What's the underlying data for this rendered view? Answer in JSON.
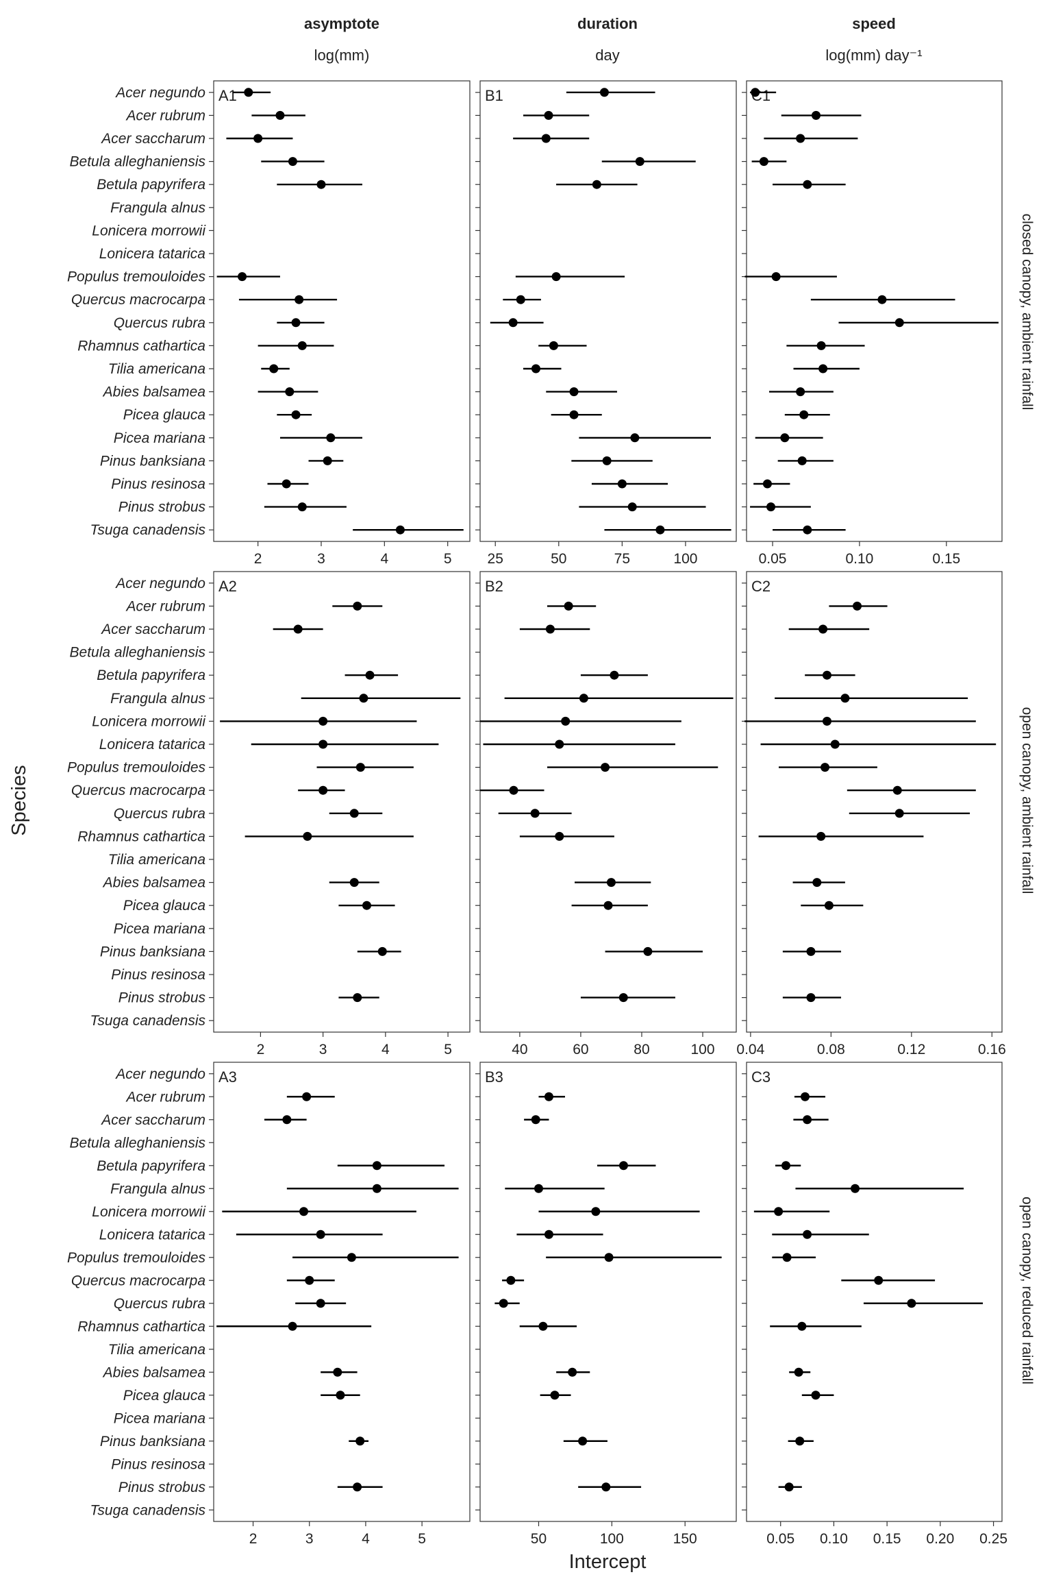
{
  "figure": {
    "xlabel": "Intercept",
    "ylabel": "Species"
  },
  "columns": [
    {
      "key": "asymptote",
      "title": "asymptote",
      "unit": "log(mm)"
    },
    {
      "key": "duration",
      "title": "duration",
      "unit": "day"
    },
    {
      "key": "speed",
      "title": "speed",
      "unit": "log(mm) day⁻¹"
    }
  ],
  "rows": [
    {
      "key": "r1",
      "label": "closed canopy, ambient rainfall"
    },
    {
      "key": "r2",
      "label": "open canopy, ambient rainfall"
    },
    {
      "key": "r3",
      "label": "open canopy, reduced rainfall"
    }
  ],
  "species": [
    "Acer negundo",
    "Acer rubrum",
    "Acer saccharum",
    "Betula alleghaniensis",
    "Betula papyrifera",
    "Frangula alnus",
    "Lonicera morrowii",
    "Lonicera tatarica",
    "Populus tremouloides",
    "Quercus macrocarpa",
    "Quercus rubra",
    "Rhamnus cathartica",
    "Tilia americana",
    "Abies balsamea",
    "Picea glauca",
    "Picea mariana",
    "Pinus banksiana",
    "Pinus resinosa",
    "Pinus strobus",
    "Tsuga canadensis"
  ],
  "chart_data": [
    {
      "type": "scatter",
      "panel": "A1",
      "column": "asymptote",
      "row": "closed canopy, ambient rainfall",
      "xlim": [
        1.3,
        5.35
      ],
      "ticks": [
        2,
        3,
        4,
        5
      ],
      "tick_labels": [
        "2",
        "3",
        "4",
        "5"
      ],
      "points": [
        [
          1.85,
          1.6,
          2.2
        ],
        [
          2.35,
          1.9,
          2.75
        ],
        [
          2.0,
          1.5,
          2.55
        ],
        [
          2.55,
          2.05,
          3.05
        ],
        [
          3.0,
          2.3,
          3.65
        ],
        null,
        null,
        null,
        [
          1.75,
          1.35,
          2.35
        ],
        [
          2.65,
          1.7,
          3.25
        ],
        [
          2.6,
          2.3,
          3.05
        ],
        [
          2.7,
          2.0,
          3.2
        ],
        [
          2.25,
          2.05,
          2.5
        ],
        [
          2.5,
          2.0,
          2.95
        ],
        [
          2.6,
          2.3,
          2.85
        ],
        [
          3.15,
          2.35,
          3.65
        ],
        [
          3.1,
          2.8,
          3.35
        ],
        [
          2.45,
          2.15,
          2.8
        ],
        [
          2.7,
          2.1,
          3.4
        ],
        [
          4.25,
          3.5,
          5.25
        ]
      ]
    },
    {
      "type": "scatter",
      "panel": "B1",
      "column": "duration",
      "row": "closed canopy, ambient rainfall",
      "xlim": [
        19,
        120
      ],
      "ticks": [
        25,
        50,
        75,
        100
      ],
      "tick_labels": [
        "25",
        "50",
        "75",
        "100"
      ],
      "points": [
        [
          68,
          53,
          88
        ],
        [
          46,
          36,
          62
        ],
        [
          45,
          32,
          62
        ],
        [
          82,
          67,
          104
        ],
        [
          65,
          49,
          81
        ],
        null,
        null,
        null,
        [
          49,
          33,
          76
        ],
        [
          35,
          28,
          43
        ],
        [
          32,
          23,
          44
        ],
        [
          48,
          42,
          61
        ],
        [
          41,
          36,
          51
        ],
        [
          56,
          45,
          73
        ],
        [
          56,
          47,
          67
        ],
        [
          80,
          58,
          110
        ],
        [
          69,
          55,
          87
        ],
        [
          75,
          63,
          93
        ],
        [
          79,
          58,
          108
        ],
        [
          90,
          68,
          118
        ]
      ]
    },
    {
      "type": "scatter",
      "panel": "C1",
      "column": "speed",
      "row": "closed canopy, ambient rainfall",
      "xlim": [
        0.035,
        0.182
      ],
      "ticks": [
        0.05,
        0.1,
        0.15
      ],
      "tick_labels": [
        "0.05",
        "0.10",
        "0.15"
      ],
      "points": [
        [
          0.04,
          0.037,
          0.052
        ],
        [
          0.075,
          0.055,
          0.101
        ],
        [
          0.066,
          0.045,
          0.099
        ],
        [
          0.045,
          0.038,
          0.058
        ],
        [
          0.07,
          0.05,
          0.092
        ],
        null,
        null,
        null,
        [
          0.052,
          0.034,
          0.087
        ],
        [
          0.113,
          0.072,
          0.155
        ],
        [
          0.123,
          0.088,
          0.18
        ],
        [
          0.078,
          0.058,
          0.103
        ],
        [
          0.079,
          0.062,
          0.1
        ],
        [
          0.066,
          0.048,
          0.085
        ],
        [
          0.068,
          0.057,
          0.083
        ],
        [
          0.057,
          0.04,
          0.079
        ],
        [
          0.067,
          0.053,
          0.085
        ],
        [
          0.047,
          0.039,
          0.06
        ],
        [
          0.049,
          0.037,
          0.072
        ],
        [
          0.07,
          0.05,
          0.092
        ]
      ]
    },
    {
      "type": "scatter",
      "panel": "A2",
      "column": "asymptote",
      "row": "open canopy, ambient rainfall",
      "xlim": [
        1.25,
        5.35
      ],
      "ticks": [
        2,
        3,
        4,
        5
      ],
      "tick_labels": [
        "2",
        "3",
        "4",
        "5"
      ],
      "points": [
        null,
        [
          3.55,
          3.15,
          3.95
        ],
        [
          2.6,
          2.2,
          3.0
        ],
        null,
        [
          3.75,
          3.35,
          4.2
        ],
        [
          3.65,
          2.65,
          5.2
        ],
        [
          3.0,
          1.35,
          4.5
        ],
        [
          3.0,
          1.85,
          4.85
        ],
        [
          3.6,
          2.9,
          4.45
        ],
        [
          3.0,
          2.6,
          3.35
        ],
        [
          3.5,
          3.1,
          3.95
        ],
        [
          2.75,
          1.75,
          4.45
        ],
        null,
        [
          3.5,
          3.1,
          3.9
        ],
        [
          3.7,
          3.25,
          4.15
        ],
        null,
        [
          3.95,
          3.55,
          4.25
        ],
        null,
        [
          3.55,
          3.25,
          3.9
        ],
        null
      ]
    },
    {
      "type": "scatter",
      "panel": "B2",
      "column": "duration",
      "row": "open canopy, ambient rainfall",
      "xlim": [
        27,
        111
      ],
      "ticks": [
        40,
        60,
        80,
        100
      ],
      "tick_labels": [
        "40",
        "60",
        "80",
        "100"
      ],
      "points": [
        null,
        [
          56,
          49,
          65
        ],
        [
          50,
          40,
          63
        ],
        null,
        [
          71,
          60,
          82
        ],
        [
          61,
          35,
          110
        ],
        [
          55,
          27,
          93
        ],
        [
          53,
          28,
          91
        ],
        [
          68,
          49,
          105
        ],
        [
          38,
          27,
          48
        ],
        [
          45,
          33,
          57
        ],
        [
          53,
          40,
          71
        ],
        null,
        [
          70,
          58,
          83
        ],
        [
          69,
          57,
          82
        ],
        null,
        [
          82,
          68,
          100
        ],
        null,
        [
          74,
          60,
          91
        ],
        null
      ]
    },
    {
      "type": "scatter",
      "panel": "C2",
      "column": "speed",
      "row": "open canopy, ambient rainfall",
      "xlim": [
        0.038,
        0.165
      ],
      "ticks": [
        0.04,
        0.08,
        0.12,
        0.16
      ],
      "tick_labels": [
        "0.04",
        "0.08",
        "0.12",
        "0.16"
      ],
      "points": [
        null,
        [
          0.093,
          0.079,
          0.108
        ],
        [
          0.076,
          0.059,
          0.099
        ],
        null,
        [
          0.078,
          0.067,
          0.092
        ],
        [
          0.087,
          0.052,
          0.148
        ],
        [
          0.078,
          0.037,
          0.152
        ],
        [
          0.082,
          0.045,
          0.162
        ],
        [
          0.077,
          0.054,
          0.103
        ],
        [
          0.113,
          0.088,
          0.152
        ],
        [
          0.114,
          0.089,
          0.149
        ],
        [
          0.075,
          0.044,
          0.126
        ],
        null,
        [
          0.073,
          0.061,
          0.087
        ],
        [
          0.079,
          0.065,
          0.096
        ],
        null,
        [
          0.07,
          0.056,
          0.085
        ],
        null,
        [
          0.07,
          0.056,
          0.085
        ],
        null
      ]
    },
    {
      "type": "scatter",
      "panel": "A3",
      "column": "asymptote",
      "row": "open canopy, reduced rainfall",
      "xlim": [
        1.3,
        5.85
      ],
      "ticks": [
        2,
        3,
        4,
        5
      ],
      "tick_labels": [
        "2",
        "3",
        "4",
        "5"
      ],
      "points": [
        null,
        [
          2.95,
          2.6,
          3.45
        ],
        [
          2.6,
          2.2,
          2.95
        ],
        null,
        [
          4.2,
          3.5,
          5.4
        ],
        [
          4.2,
          2.6,
          5.65
        ],
        [
          2.9,
          1.45,
          4.9
        ],
        [
          3.2,
          1.7,
          4.3
        ],
        [
          3.75,
          2.7,
          5.65
        ],
        [
          3.0,
          2.6,
          3.45
        ],
        [
          3.2,
          2.75,
          3.65
        ],
        [
          2.7,
          1.35,
          4.1
        ],
        null,
        [
          3.5,
          3.2,
          3.85
        ],
        [
          3.55,
          3.2,
          3.9
        ],
        null,
        [
          3.9,
          3.7,
          4.05
        ],
        null,
        [
          3.85,
          3.5,
          4.3
        ],
        null
      ]
    },
    {
      "type": "scatter",
      "panel": "B3",
      "column": "duration",
      "row": "open canopy, reduced rainfall",
      "xlim": [
        10,
        185
      ],
      "ticks": [
        50,
        100,
        150
      ],
      "tick_labels": [
        "50",
        "100",
        "150"
      ],
      "points": [
        null,
        [
          57,
          50,
          68
        ],
        [
          48,
          40,
          57
        ],
        null,
        [
          108,
          90,
          130
        ],
        [
          50,
          27,
          95
        ],
        [
          89,
          50,
          160
        ],
        [
          57,
          35,
          94
        ],
        [
          98,
          55,
          175
        ],
        [
          31,
          25,
          40
        ],
        [
          26,
          20,
          37
        ],
        [
          53,
          37,
          76
        ],
        null,
        [
          73,
          62,
          85
        ],
        [
          61,
          51,
          72
        ],
        null,
        [
          80,
          67,
          97
        ],
        null,
        [
          96,
          77,
          120
        ],
        null
      ]
    },
    {
      "type": "scatter",
      "panel": "C3",
      "column": "speed",
      "row": "open canopy, reduced rainfall",
      "xlim": [
        0.018,
        0.258
      ],
      "ticks": [
        0.05,
        0.1,
        0.15,
        0.2,
        0.25
      ],
      "tick_labels": [
        "0.05",
        "0.10",
        "0.15",
        "0.20",
        "0.25"
      ],
      "points": [
        null,
        [
          0.073,
          0.063,
          0.092
        ],
        [
          0.075,
          0.062,
          0.095
        ],
        null,
        [
          0.055,
          0.045,
          0.069
        ],
        [
          0.12,
          0.064,
          0.222
        ],
        [
          0.048,
          0.025,
          0.096
        ],
        [
          0.075,
          0.042,
          0.133
        ],
        [
          0.056,
          0.042,
          0.083
        ],
        [
          0.142,
          0.107,
          0.195
        ],
        [
          0.173,
          0.128,
          0.24
        ],
        [
          0.07,
          0.04,
          0.126
        ],
        null,
        [
          0.067,
          0.058,
          0.078
        ],
        [
          0.083,
          0.07,
          0.1
        ],
        null,
        [
          0.068,
          0.057,
          0.081
        ],
        null,
        [
          0.058,
          0.048,
          0.07
        ],
        null
      ]
    }
  ]
}
